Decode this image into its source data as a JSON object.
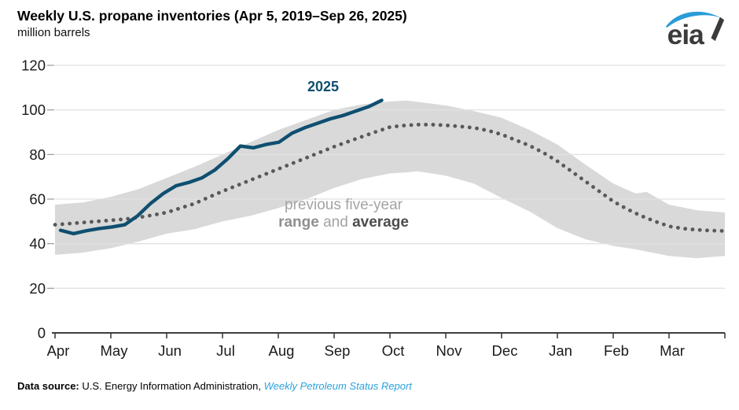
{
  "header": {
    "title": "Weekly U.S. propane inventories (Apr 5, 2019–Sep 26, 2025)",
    "units": "million barrels",
    "logo_text": "eia"
  },
  "annotations": {
    "series_label": "2025",
    "range_line1": "previous five-year",
    "range_word": "range",
    "and_word": "and",
    "average_word": "average"
  },
  "footer": {
    "prefix": "Data source:",
    "agency": " U.S. Energy Information Administration, ",
    "link": "Weekly Petroleum Status Report"
  },
  "colors": {
    "line_2025": "#0f4f70",
    "average_dots": "#595959",
    "range_band": "#d9d9d9",
    "gridline": "#e2e2e2",
    "axis": "#3f3f3f",
    "tick_label": "#1a1a1a",
    "link_blue": "#2aa3db",
    "logo_blue": "#2b9cd8",
    "logo_gray": "#3b3b3b"
  },
  "chart_data": {
    "type": "line",
    "title": "Weekly U.S. propane inventories (Apr 5, 2019–Sep 26, 2025)",
    "ylabel": "million barrels",
    "ylim": [
      0,
      120
    ],
    "yticks": [
      0,
      20,
      40,
      60,
      80,
      100,
      120
    ],
    "x_months": [
      "Apr",
      "May",
      "Jun",
      "Jul",
      "Aug",
      "Sep",
      "Oct",
      "Nov",
      "Dec",
      "Jan",
      "Feb",
      "Mar"
    ],
    "grid": "horizontal",
    "legend_position": "inline-annotations",
    "series": [
      {
        "name": "2025",
        "type": "line",
        "color": "#0f4f70",
        "weeks": [
          "Apr 4",
          "Apr 11",
          "Apr 18",
          "Apr 25",
          "May 2",
          "May 9",
          "May 16",
          "May 23",
          "May 30",
          "Jun 6",
          "Jun 13",
          "Jun 20",
          "Jun 27",
          "Jul 4",
          "Jul 11",
          "Jul 18",
          "Jul 25",
          "Aug 1",
          "Aug 8",
          "Aug 15",
          "Aug 22",
          "Aug 29",
          "Sep 5",
          "Sep 12",
          "Sep 19",
          "Sep 26"
        ],
        "day_of_year_from_apr1": [
          3,
          10,
          17,
          24,
          31,
          38,
          45,
          52,
          59,
          66,
          73,
          80,
          87,
          94,
          101,
          108,
          115,
          122,
          129,
          136,
          143,
          150,
          157,
          164,
          171,
          178
        ],
        "values": [
          46.0,
          44.5,
          45.8,
          46.8,
          47.5,
          48.5,
          52.5,
          58.0,
          62.5,
          66.0,
          67.5,
          69.5,
          73.0,
          78.0,
          83.8,
          83.0,
          84.5,
          85.5,
          89.5,
          92.0,
          94.0,
          96.0,
          97.5,
          99.5,
          101.5,
          104.3
        ]
      },
      {
        "name": "previous five-year average",
        "type": "dotted-line",
        "color": "#595959",
        "month_pos": [
          0,
          0.25,
          0.5,
          0.75,
          1,
          1.25,
          1.5,
          1.75,
          2,
          2.25,
          2.5,
          2.75,
          3,
          3.25,
          3.5,
          3.75,
          4,
          4.25,
          4.5,
          4.75,
          5,
          5.25,
          5.5,
          5.75,
          6,
          6.25,
          6.5,
          6.75,
          7,
          7.25,
          7.5,
          7.75,
          8,
          8.25,
          8.5,
          8.75,
          9,
          9.25,
          9.5,
          9.75,
          10,
          10.25,
          10.5,
          10.75,
          11,
          11.25,
          11.5,
          11.75,
          12
        ],
        "values": [
          48.5,
          49.0,
          49.5,
          50.0,
          50.5,
          51.0,
          51.8,
          52.8,
          54.0,
          56.0,
          58.0,
          60.8,
          63.5,
          66.0,
          68.5,
          71.0,
          73.5,
          76.0,
          78.5,
          81.0,
          83.5,
          85.8,
          88.0,
          90.2,
          92.3,
          93.0,
          93.4,
          93.4,
          93.1,
          92.6,
          92.0,
          90.8,
          89.0,
          86.5,
          84.0,
          80.8,
          77.0,
          72.5,
          68.0,
          63.5,
          59.0,
          55.5,
          52.5,
          50.0,
          47.8,
          46.8,
          46.2,
          45.9,
          45.7
        ]
      },
      {
        "name": "previous five-year range",
        "type": "band",
        "color": "#d9d9d9",
        "month_pos": [
          0,
          0.5,
          1,
          1.5,
          2,
          2.5,
          3,
          3.5,
          4,
          4.5,
          5,
          5.5,
          6,
          6.3,
          6.5,
          7,
          7.5,
          8,
          8.5,
          9,
          9.5,
          10,
          10.4,
          10.6,
          11,
          11.5,
          12
        ],
        "upper": [
          57.5,
          58.5,
          61.0,
          64.5,
          69.5,
          74.5,
          80.0,
          85.5,
          91.0,
          95.5,
          100.0,
          102.5,
          103.8,
          104.2,
          103.6,
          102.0,
          99.5,
          96.5,
          91.0,
          84.5,
          75.5,
          67.0,
          62.5,
          63.2,
          57.5,
          55.0,
          54.0
        ],
        "lower": [
          35.0,
          36.0,
          38.0,
          41.0,
          44.5,
          46.5,
          50.0,
          52.5,
          56.0,
          60.0,
          65.0,
          69.0,
          71.5,
          72.0,
          72.5,
          70.5,
          67.0,
          60.5,
          54.5,
          47.0,
          42.0,
          39.0,
          37.5,
          36.5,
          34.5,
          33.5,
          34.5
        ]
      }
    ]
  }
}
